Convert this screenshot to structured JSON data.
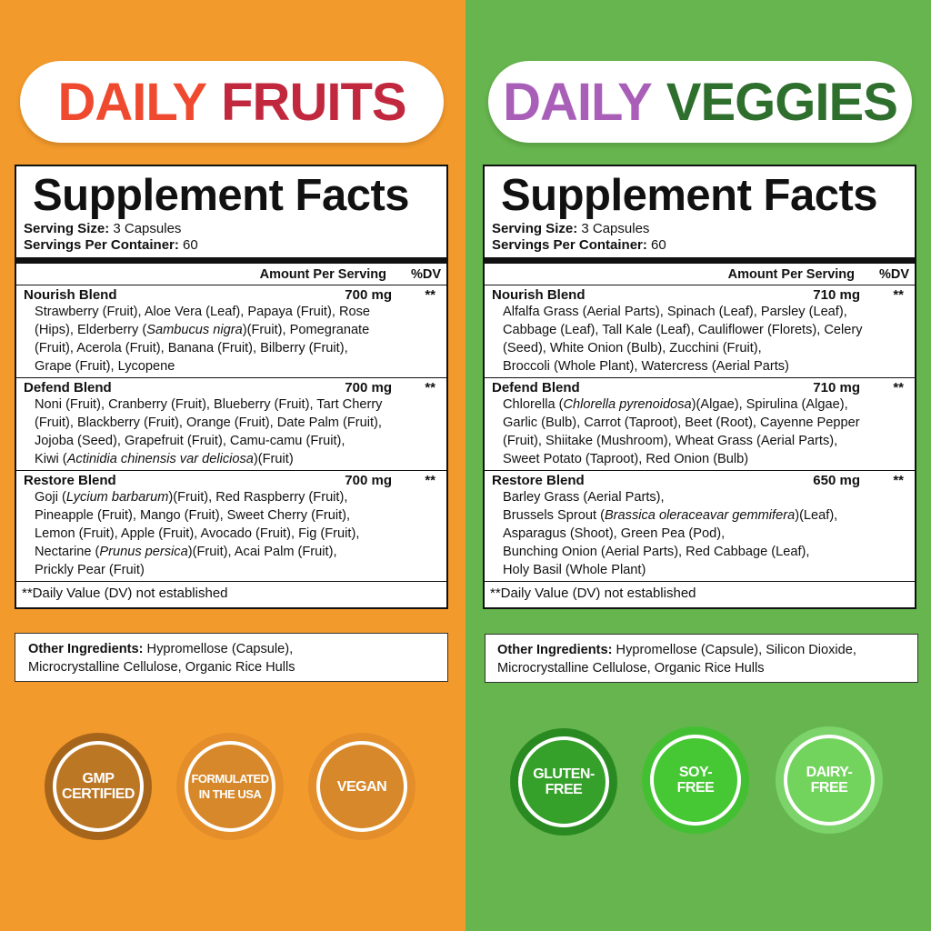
{
  "colors": {
    "orange_bg": "#f39a2c",
    "green_bg": "#66b54e"
  },
  "left": {
    "title_a": "DAILY",
    "title_b": "FRUITS",
    "title_a_color": "#ef4a2f",
    "title_b_color": "#c1283e",
    "facts_title": "Supplement Facts",
    "serving_size_label": "Serving Size:",
    "serving_size": " 3 Capsules",
    "servings_label": "Servings Per Container:",
    "servings": " 60",
    "amount_header": "Amount Per Serving",
    "dv_header": "%DV",
    "blends": [
      {
        "name": "Nourish Blend",
        "amount": "700 mg",
        "dv": "**",
        "lines": [
          [
            {
              "t": "Strawberry (Fruit), Aloe Vera (Leaf), Papaya (Fruit), Rose"
            }
          ],
          [
            {
              "t": "(Hips), Elderberry ("
            },
            {
              "t": "Sambucus nigra",
              "i": true
            },
            {
              "t": ")(Fruit), Pomegranate"
            }
          ],
          [
            {
              "t": "(Fruit), Acerola (Fruit), Banana (Fruit), Bilberry (Fruit),"
            }
          ],
          [
            {
              "t": "Grape (Fruit), Lycopene"
            }
          ]
        ]
      },
      {
        "name": "Defend Blend",
        "amount": "700 mg",
        "dv": "**",
        "lines": [
          [
            {
              "t": "Noni (Fruit), Cranberry (Fruit), Blueberry (Fruit), Tart Cherry"
            }
          ],
          [
            {
              "t": "(Fruit), Blackberry (Fruit), Orange (Fruit), Date Palm (Fruit),"
            }
          ],
          [
            {
              "t": "Jojoba (Seed), Grapefruit (Fruit), Camu-camu (Fruit),"
            }
          ],
          [
            {
              "t": "Kiwi ("
            },
            {
              "t": "Actinidia chinensis var deliciosa",
              "i": true
            },
            {
              "t": ")(Fruit)"
            }
          ]
        ]
      },
      {
        "name": "Restore Blend",
        "amount": "700 mg",
        "dv": "**",
        "lines": [
          [
            {
              "t": "Goji ("
            },
            {
              "t": "Lycium barbarum",
              "i": true
            },
            {
              "t": ")(Fruit), Red Raspberry (Fruit),"
            }
          ],
          [
            {
              "t": "Pineapple (Fruit), Mango (Fruit), Sweet Cherry (Fruit),"
            }
          ],
          [
            {
              "t": "Lemon (Fruit), Apple (Fruit), Avocado (Fruit), Fig (Fruit),"
            }
          ],
          [
            {
              "t": "Nectarine ("
            },
            {
              "t": "Prunus persica",
              "i": true
            },
            {
              "t": ")(Fruit), Acai Palm (Fruit),"
            }
          ],
          [
            {
              "t": "Prickly Pear (Fruit)"
            }
          ]
        ]
      }
    ],
    "footnote": "**Daily Value (DV) not established",
    "other_label": "Other Ingredients:",
    "other_line1": " Hypromellose (Capsule),",
    "other_line2": "Microcrystalline Cellulose, Organic Rice Hulls",
    "badges": [
      {
        "l1": "GMP",
        "l2": "CERTIFIED",
        "outer": "#a7651c",
        "inner": "#bc7724"
      },
      {
        "l1": "FORMULATED",
        "l2": "IN THE USA",
        "outer": "#e38e2a",
        "inner": "#d6882a"
      },
      {
        "l1": "VEGAN",
        "l2": "",
        "outer": "#e38e2a",
        "inner": "#d6882a"
      }
    ]
  },
  "right": {
    "title_a": "DAILY",
    "title_b": "VEGGIES",
    "title_a_color": "#a95fb8",
    "title_b_color": "#2f6f2d",
    "facts_title": "Supplement Facts",
    "serving_size_label": "Serving Size:",
    "serving_size": " 3 Capsules",
    "servings_label": "Servings Per Container:",
    "servings": " 60",
    "amount_header": "Amount Per Serving",
    "dv_header": "%DV",
    "blends": [
      {
        "name": "Nourish Blend",
        "amount": "710 mg",
        "dv": "**",
        "lines": [
          [
            {
              "t": "Alfalfa Grass (Aerial Parts), Spinach (Leaf), Parsley (Leaf),"
            }
          ],
          [
            {
              "t": "Cabbage (Leaf), Tall Kale (Leaf), Cauliflower (Florets), Celery"
            }
          ],
          [
            {
              "t": "(Seed), White Onion (Bulb), Zucchini (Fruit),"
            }
          ],
          [
            {
              "t": "Broccoli (Whole Plant), Watercress (Aerial Parts)"
            }
          ]
        ]
      },
      {
        "name": "Defend Blend",
        "amount": "710 mg",
        "dv": "**",
        "lines": [
          [
            {
              "t": "Chlorella ("
            },
            {
              "t": "Chlorella pyrenoidosa",
              "i": true
            },
            {
              "t": ")(Algae), Spirulina (Algae),"
            }
          ],
          [
            {
              "t": "Garlic (Bulb), Carrot (Taproot), Beet (Root), Cayenne Pepper"
            }
          ],
          [
            {
              "t": "(Fruit), Shiitake (Mushroom), Wheat Grass (Aerial Parts),"
            }
          ],
          [
            {
              "t": "Sweet Potato (Taproot), Red Onion (Bulb)"
            }
          ]
        ]
      },
      {
        "name": "Restore Blend",
        "amount": "650 mg",
        "dv": "**",
        "lines": [
          [
            {
              "t": "Barley Grass (Aerial Parts),"
            }
          ],
          [
            {
              "t": "Brussels Sprout ("
            },
            {
              "t": "Brassica oleraceavar gemmifera",
              "i": true
            },
            {
              "t": ")(Leaf),"
            }
          ],
          [
            {
              "t": "Asparagus (Shoot), Green Pea (Pod),"
            }
          ],
          [
            {
              "t": "Bunching Onion (Aerial Parts), Red Cabbage (Leaf),"
            }
          ],
          [
            {
              "t": "Holy Basil (Whole Plant)"
            }
          ]
        ]
      }
    ],
    "footnote": "**Daily Value (DV) not established",
    "other_label": "Other Ingredients:",
    "other_line1": " Hypromellose (Capsule), Silicon Dioxide,",
    "other_line2": "Microcrystalline Cellulose, Organic Rice Hulls",
    "badges": [
      {
        "l1": "GLUTEN-",
        "l2": "FREE",
        "outer": "#2a8a22",
        "inner": "#35a02a"
      },
      {
        "l1": "SOY-",
        "l2": "FREE",
        "outer": "#43c032",
        "inner": "#46c734"
      },
      {
        "l1": "DAIRY-",
        "l2": "FREE",
        "outer": "#7cd36a",
        "inner": "#72d45d"
      }
    ]
  }
}
